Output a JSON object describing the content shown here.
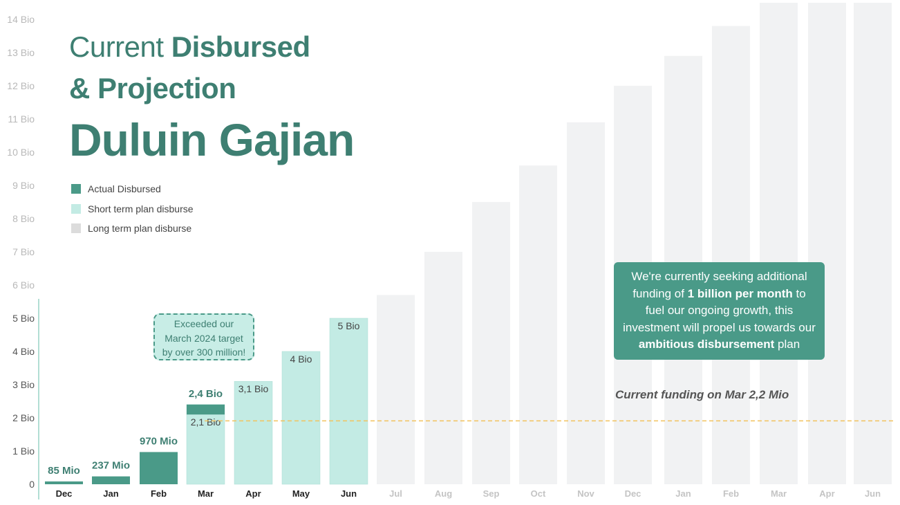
{
  "title": {
    "line1_light": "Current",
    "line1_bold": "Disbursed",
    "line2": "& Projection",
    "line3": "Duluin Gajian"
  },
  "colors": {
    "actual": "#4a9a88",
    "short_term": "#c3ebe4",
    "long_term": "#f1f2f3",
    "legend_long_term_swatch": "#dcdcdc",
    "funding_line": "#f2c25c",
    "primary_text": "#3e7f72"
  },
  "legend": {
    "items": [
      {
        "label": "Actual Disbursed"
      },
      {
        "label": "Short term plan disburse"
      },
      {
        "label": "Long term plan disburse"
      }
    ]
  },
  "callout": {
    "part1": "We're currently seeking additional funding of ",
    "bold1": "1 billion per month",
    "part2": " to fuel our ongoing growth, this investment will propel us towards our ",
    "bold2": "ambitious disbursement",
    "part3": " plan"
  },
  "note": {
    "line1": "Exceeded our",
    "line2": "March 2024 target",
    "line3": "by over 300 million!"
  },
  "funding_label": "Current funding on Mar 2,2 Mio",
  "chart_data": {
    "type": "bar",
    "title": "Current Disbursed & Projection Duluin Gajian",
    "ylim": [
      0,
      14.5
    ],
    "grid": false,
    "legend_position": "left",
    "yticks": [
      {
        "value": 0,
        "label": "0"
      },
      {
        "value": 1,
        "label": "1 Bio"
      },
      {
        "value": 2,
        "label": "2 Bio"
      },
      {
        "value": 3,
        "label": "3 Bio"
      },
      {
        "value": 4,
        "label": "4 Bio"
      },
      {
        "value": 5,
        "label": "5 Bio"
      },
      {
        "value": 6,
        "label": "6 Bio"
      },
      {
        "value": 7,
        "label": "7 Bio"
      },
      {
        "value": 8,
        "label": "8 Bio"
      },
      {
        "value": 9,
        "label": "9 Bio"
      },
      {
        "value": 10,
        "label": "10 Bio"
      },
      {
        "value": 11,
        "label": "11 Bio"
      },
      {
        "value": 12,
        "label": "12 Bio"
      },
      {
        "value": 13,
        "label": "13 Bio"
      },
      {
        "value": 14,
        "label": "14 Bio"
      }
    ],
    "categories": [
      "Dec",
      "Jan",
      "Feb",
      "Mar",
      "Apr",
      "May",
      "Jun",
      "Jul",
      "Aug",
      "Sep",
      "Oct",
      "Nov",
      "Dec",
      "Jan",
      "Feb",
      "Mar",
      "Apr",
      "Jun"
    ],
    "series": [
      {
        "name": "Actual Disbursed",
        "values": [
          0.085,
          0.237,
          0.97,
          2.4,
          null,
          null,
          null,
          null,
          null,
          null,
          null,
          null,
          null,
          null,
          null,
          null,
          null,
          null
        ]
      },
      {
        "name": "Short term plan disburse",
        "values": [
          null,
          null,
          null,
          2.1,
          3.1,
          4,
          5,
          null,
          null,
          null,
          null,
          null,
          null,
          null,
          null,
          null,
          null,
          null
        ]
      },
      {
        "name": "Long term plan disburse",
        "values": [
          null,
          null,
          null,
          null,
          null,
          null,
          null,
          5.7,
          7.0,
          8.5,
          9.6,
          10.9,
          12.0,
          12.9,
          13.8,
          14.5,
          14.5,
          14.5
        ]
      }
    ],
    "value_labels": [
      {
        "index": 0,
        "text": "85 Mio",
        "style": "bold-top"
      },
      {
        "index": 1,
        "text": "237 Mio",
        "style": "bold-top"
      },
      {
        "index": 2,
        "text": "970 Mio",
        "style": "bold-top"
      },
      {
        "index": 3,
        "text": "2,4 Bio",
        "style": "bold-top"
      },
      {
        "index": 3,
        "text": "2,1 Bio",
        "style": "inside"
      },
      {
        "index": 4,
        "text": "3,1 Bio",
        "style": "inside"
      },
      {
        "index": 5,
        "text": "4 Bio",
        "style": "inside"
      },
      {
        "index": 6,
        "text": "5 Bio",
        "style": "inside"
      }
    ],
    "reference_line": {
      "value": 2.2,
      "label": "Current funding on Mar 2,2 Mio"
    }
  }
}
